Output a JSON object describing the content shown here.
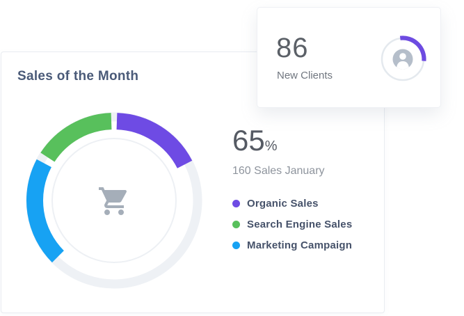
{
  "page": {
    "background": "#ffffff"
  },
  "sales_card": {
    "title": "Sales of the Month",
    "value": "65",
    "unit": "%",
    "subtitle": "160 Sales January"
  },
  "clients_card": {
    "value": "86",
    "label": "New Clients",
    "progress": {
      "start_deg": -7,
      "end_deg": 95,
      "approx_percent": 28,
      "color": "#6d4be1",
      "track_color": "#e4e9ee",
      "icon": "person-avatar",
      "icon_color": "#b5beca"
    }
  },
  "chart_data": {
    "type": "pie",
    "variant": "donut",
    "title": "Sales of the Month",
    "center_value": "65%",
    "subtitle": "160 Sales January",
    "center_icon": "shopping-cart",
    "legend_position": "right",
    "track_color": "#eef1f5",
    "inner_ring_color": "#edf0f4",
    "segments": [
      {
        "label": "Organic Sales",
        "color": "#6e4be4",
        "start_deg": 2,
        "end_deg": 63,
        "approx_percent": 17
      },
      {
        "label": "Search Engine Sales",
        "color": "#58c05c",
        "start_deg": 303,
        "end_deg": 358,
        "approx_percent": 15
      },
      {
        "label": "Marketing Campaign",
        "color": "#17a2f3",
        "start_deg": 225,
        "end_deg": 298,
        "approx_percent": 20
      }
    ]
  },
  "colors": {
    "title_text": "#4a5a78",
    "stat_text": "#555a63",
    "muted_text": "#8e949d",
    "legend_text": "#46526a",
    "cart_icon": "#a5aeb9",
    "card_border": "#e9ecf1"
  }
}
